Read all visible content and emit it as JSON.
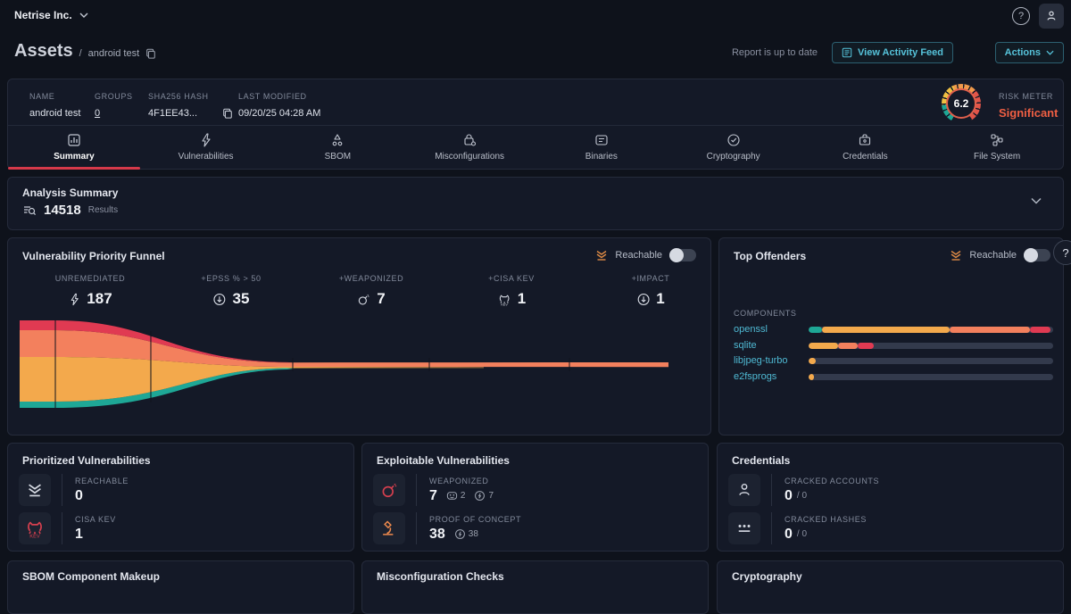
{
  "colors": {
    "teal": "#1ea796",
    "amber": "#f3a94c",
    "salmon": "#f3805d",
    "red": "#e03a52",
    "cyan": "#56c3da",
    "track": "#333a4c",
    "accent_red": "#d5394a",
    "risk_orange": "#e0604c"
  },
  "topbar": {
    "org": "Netrise Inc."
  },
  "header": {
    "title": "Assets",
    "asset": "android test",
    "separator": "/",
    "report_status": "Report is up to date",
    "view_activity_feed": "View Activity Feed",
    "actions": "Actions"
  },
  "asset_info": {
    "fields": [
      {
        "label": "NAME",
        "value": "android test"
      },
      {
        "label": "GROUPS",
        "value": "0"
      },
      {
        "label": "SHA256 HASH",
        "value": "4F1EE43..."
      },
      {
        "label": "LAST MODIFIED",
        "value": "09/20/25 04:28 AM"
      }
    ],
    "risk": {
      "label": "RISK METER",
      "level": "Significant",
      "score": "6.2"
    }
  },
  "tabs": [
    {
      "label": "Summary",
      "active": true
    },
    {
      "label": "Vulnerabilities",
      "active": false
    },
    {
      "label": "SBOM",
      "active": false
    },
    {
      "label": "Misconfigurations",
      "active": false
    },
    {
      "label": "Binaries",
      "active": false
    },
    {
      "label": "Cryptography",
      "active": false
    },
    {
      "label": "Credentials",
      "active": false
    },
    {
      "label": "File System",
      "active": false
    }
  ],
  "analysis": {
    "title": "Analysis Summary",
    "count": "14518",
    "unit": "Results"
  },
  "funnel": {
    "title": "Vulnerability Priority Funnel",
    "reachable_label": "Reachable",
    "stats": [
      {
        "label": "UNREMEDIATED",
        "value": "187"
      },
      {
        "label": "+EPSS % > 50",
        "value": "35"
      },
      {
        "label": "+WEAPONIZED",
        "value": "7"
      },
      {
        "label": "+CISA KEV",
        "value": "1"
      },
      {
        "label": "+IMPACT",
        "value": "1"
      }
    ]
  },
  "top_offenders": {
    "title": "Top Offenders",
    "reachable_label": "Reachable",
    "components_label": "COMPONENTS",
    "rows": [
      {
        "name": "openssl",
        "segments": [
          [
            "teal",
            5.5
          ],
          [
            "amber",
            52
          ],
          [
            "salmon",
            33
          ],
          [
            "red",
            8.5
          ]
        ]
      },
      {
        "name": "sqlite",
        "segments": [
          [
            "amber",
            12
          ],
          [
            "salmon",
            8
          ],
          [
            "red",
            6.5
          ]
        ]
      },
      {
        "name": "libjpeg-turbo",
        "segments": [
          [
            "amber",
            3
          ]
        ]
      },
      {
        "name": "e2fsprogs",
        "segments": [
          [
            "amber",
            2.2
          ]
        ]
      }
    ]
  },
  "cards": {
    "prioritized": {
      "title": "Prioritized Vulnerabilities",
      "rows": [
        {
          "label": "REACHABLE",
          "value": "0"
        },
        {
          "label": "CISA KEV",
          "value": "1"
        }
      ]
    },
    "exploitable": {
      "title": "Exploitable Vulnerabilities",
      "rows": [
        {
          "label": "WEAPONIZED",
          "value": "7",
          "badges": [
            {
              "icon": "threat-actor",
              "value": "2"
            },
            {
              "icon": "exploit",
              "value": "7"
            }
          ]
        },
        {
          "label": "PROOF OF CONCEPT",
          "value": "38",
          "badges": [
            {
              "icon": "exploit",
              "value": "38"
            }
          ]
        }
      ]
    },
    "credentials": {
      "title": "Credentials",
      "rows": [
        {
          "label": "CRACKED ACCOUNTS",
          "value": "0",
          "suffix": "/ 0"
        },
        {
          "label": "CRACKED HASHES",
          "value": "0",
          "suffix": "/ 0"
        }
      ]
    }
  },
  "bottom_cards": [
    {
      "title": "SBOM Component Makeup"
    },
    {
      "title": "Misconfiguration Checks"
    },
    {
      "title": "Cryptography"
    }
  ],
  "chart_data": [
    {
      "type": "area",
      "title": "Vulnerability Priority Funnel",
      "categories": [
        "UNREMEDIATED",
        "+EPSS % > 50",
        "+WEAPONIZED",
        "+CISA KEV",
        "+IMPACT"
      ],
      "values": [
        187,
        35,
        7,
        1,
        1
      ],
      "layers_at_start_pct": {
        "red": 12,
        "salmon": 30,
        "amber": 52,
        "teal": 6
      },
      "legend_position": "none",
      "grid": false
    },
    {
      "type": "bar",
      "title": "Top Offenders",
      "orientation": "horizontal",
      "unit": "percent-of-track",
      "categories": [
        "openssl",
        "sqlite",
        "libjpeg-turbo",
        "e2fsprogs"
      ],
      "series": [
        {
          "name": "teal",
          "values": [
            5.5,
            0,
            0,
            0
          ]
        },
        {
          "name": "amber",
          "values": [
            52,
            12,
            3,
            2.2
          ]
        },
        {
          "name": "salmon",
          "values": [
            33,
            8,
            0,
            0
          ]
        },
        {
          "name": "red",
          "values": [
            8.5,
            6.5,
            0,
            0
          ]
        }
      ]
    }
  ]
}
